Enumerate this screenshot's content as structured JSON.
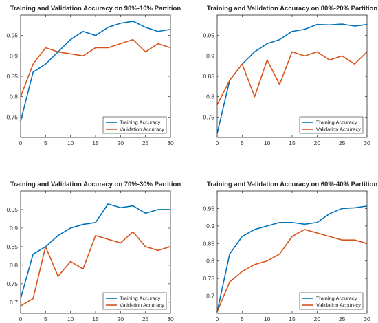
{
  "chart_data": [
    {
      "type": "line",
      "title": "Training and Validation Accuracy on 90%-10% Partition",
      "xlim": [
        0,
        30
      ],
      "ylim": [
        0.7,
        1.0
      ],
      "xticks": [
        0,
        5,
        10,
        15,
        20,
        25,
        30
      ],
      "yticks": [
        0.75,
        0.8,
        0.85,
        0.9,
        0.95
      ],
      "legend_position": "bottom-right",
      "x": [
        0,
        2.5,
        5,
        7.5,
        10,
        12.5,
        15,
        17.5,
        20,
        22.5,
        25,
        27.5,
        30
      ],
      "series": [
        {
          "name": "Training Accuracy",
          "color": "#0072BD",
          "values": [
            0.74,
            0.86,
            0.88,
            0.91,
            0.94,
            0.96,
            0.95,
            0.97,
            0.98,
            0.985,
            0.97,
            0.96,
            0.965
          ]
        },
        {
          "name": "Validation Accuracy",
          "color": "#D95319",
          "values": [
            0.8,
            0.88,
            0.92,
            0.91,
            0.905,
            0.9,
            0.92,
            0.92,
            0.93,
            0.94,
            0.91,
            0.93,
            0.92
          ]
        }
      ]
    },
    {
      "type": "line",
      "title": "Training and Validation Accuracy on 80%-20% Partition",
      "xlim": [
        0,
        30
      ],
      "ylim": [
        0.7,
        1.0
      ],
      "xticks": [
        0,
        5,
        10,
        15,
        20,
        25,
        30
      ],
      "yticks": [
        0.75,
        0.8,
        0.85,
        0.9,
        0.95
      ],
      "legend_position": "bottom-right",
      "x": [
        0,
        2.5,
        5,
        7.5,
        10,
        12.5,
        15,
        17.5,
        20,
        22.5,
        25,
        27.5,
        30
      ],
      "series": [
        {
          "name": "Training Accuracy",
          "color": "#0072BD",
          "values": [
            0.71,
            0.84,
            0.88,
            0.91,
            0.93,
            0.94,
            0.96,
            0.965,
            0.977,
            0.976,
            0.978,
            0.973,
            0.977
          ]
        },
        {
          "name": "Validation Accuracy",
          "color": "#D95319",
          "values": [
            0.78,
            0.84,
            0.88,
            0.8,
            0.89,
            0.83,
            0.91,
            0.9,
            0.91,
            0.89,
            0.9,
            0.88,
            0.91
          ]
        }
      ]
    },
    {
      "type": "line",
      "title": "Training and Validation Accuracy on 70%-30% Partition",
      "xlim": [
        0,
        30
      ],
      "ylim": [
        0.67,
        1.0
      ],
      "xticks": [
        0,
        5,
        10,
        15,
        20,
        25,
        30
      ],
      "yticks": [
        0.7,
        0.75,
        0.8,
        0.85,
        0.9,
        0.95
      ],
      "legend_position": "bottom-right",
      "x": [
        0,
        2.5,
        5,
        7.5,
        10,
        12.5,
        15,
        17.5,
        20,
        22.5,
        25,
        27.5,
        30
      ],
      "series": [
        {
          "name": "Training Accuracy",
          "color": "#0072BD",
          "values": [
            0.71,
            0.83,
            0.85,
            0.88,
            0.9,
            0.91,
            0.915,
            0.965,
            0.955,
            0.96,
            0.94,
            0.95,
            0.95
          ]
        },
        {
          "name": "Validation Accuracy",
          "color": "#D95319",
          "values": [
            0.69,
            0.71,
            0.85,
            0.77,
            0.81,
            0.79,
            0.88,
            0.87,
            0.86,
            0.89,
            0.85,
            0.84,
            0.85
          ]
        }
      ]
    },
    {
      "type": "line",
      "title": "Training and Validation Accuracy on 60%-40% Partition",
      "xlim": [
        0,
        30
      ],
      "ylim": [
        0.65,
        1.0
      ],
      "xticks": [
        0,
        5,
        10,
        15,
        20,
        25,
        30
      ],
      "yticks": [
        0.7,
        0.75,
        0.8,
        0.85,
        0.9,
        0.95
      ],
      "legend_position": "bottom-right",
      "x": [
        0,
        2.5,
        5,
        7.5,
        10,
        12.5,
        15,
        17.5,
        20,
        22.5,
        25,
        27.5,
        30
      ],
      "series": [
        {
          "name": "Training Accuracy",
          "color": "#0072BD",
          "values": [
            0.655,
            0.82,
            0.87,
            0.89,
            0.9,
            0.91,
            0.91,
            0.905,
            0.91,
            0.935,
            0.95,
            0.952,
            0.957
          ]
        },
        {
          "name": "Validation Accuracy",
          "color": "#D95319",
          "values": [
            0.655,
            0.74,
            0.77,
            0.79,
            0.8,
            0.82,
            0.87,
            0.89,
            0.88,
            0.87,
            0.86,
            0.86,
            0.85
          ]
        }
      ]
    }
  ]
}
